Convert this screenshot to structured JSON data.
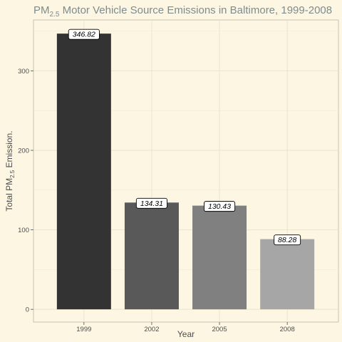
{
  "chart_data": {
    "type": "bar",
    "title_main": "PM",
    "title_sub": "2.5",
    "title_rest": " Motor Vehicle Source Emissions in Baltimore, 1999-2008",
    "xlabel": "Year",
    "ylabel_main": "Total PM",
    "ylabel_sub": "2.5",
    "ylabel_rest": " Emission.",
    "categories": [
      "1999",
      "2002",
      "2005",
      "2008"
    ],
    "values": [
      346.82,
      134.31,
      130.43,
      88.28
    ],
    "value_labels": [
      "346.82",
      "134.31",
      "130.43",
      "88.28"
    ],
    "ylim": [
      -16,
      364
    ],
    "yticks": [
      0,
      100,
      200,
      300
    ],
    "ytick_labels": [
      "0",
      "100",
      "200",
      "300"
    ],
    "bar_colors": [
      "#333333",
      "#595959",
      "#808080",
      "#a6a6a6"
    ],
    "grid": true,
    "legend": "none"
  }
}
